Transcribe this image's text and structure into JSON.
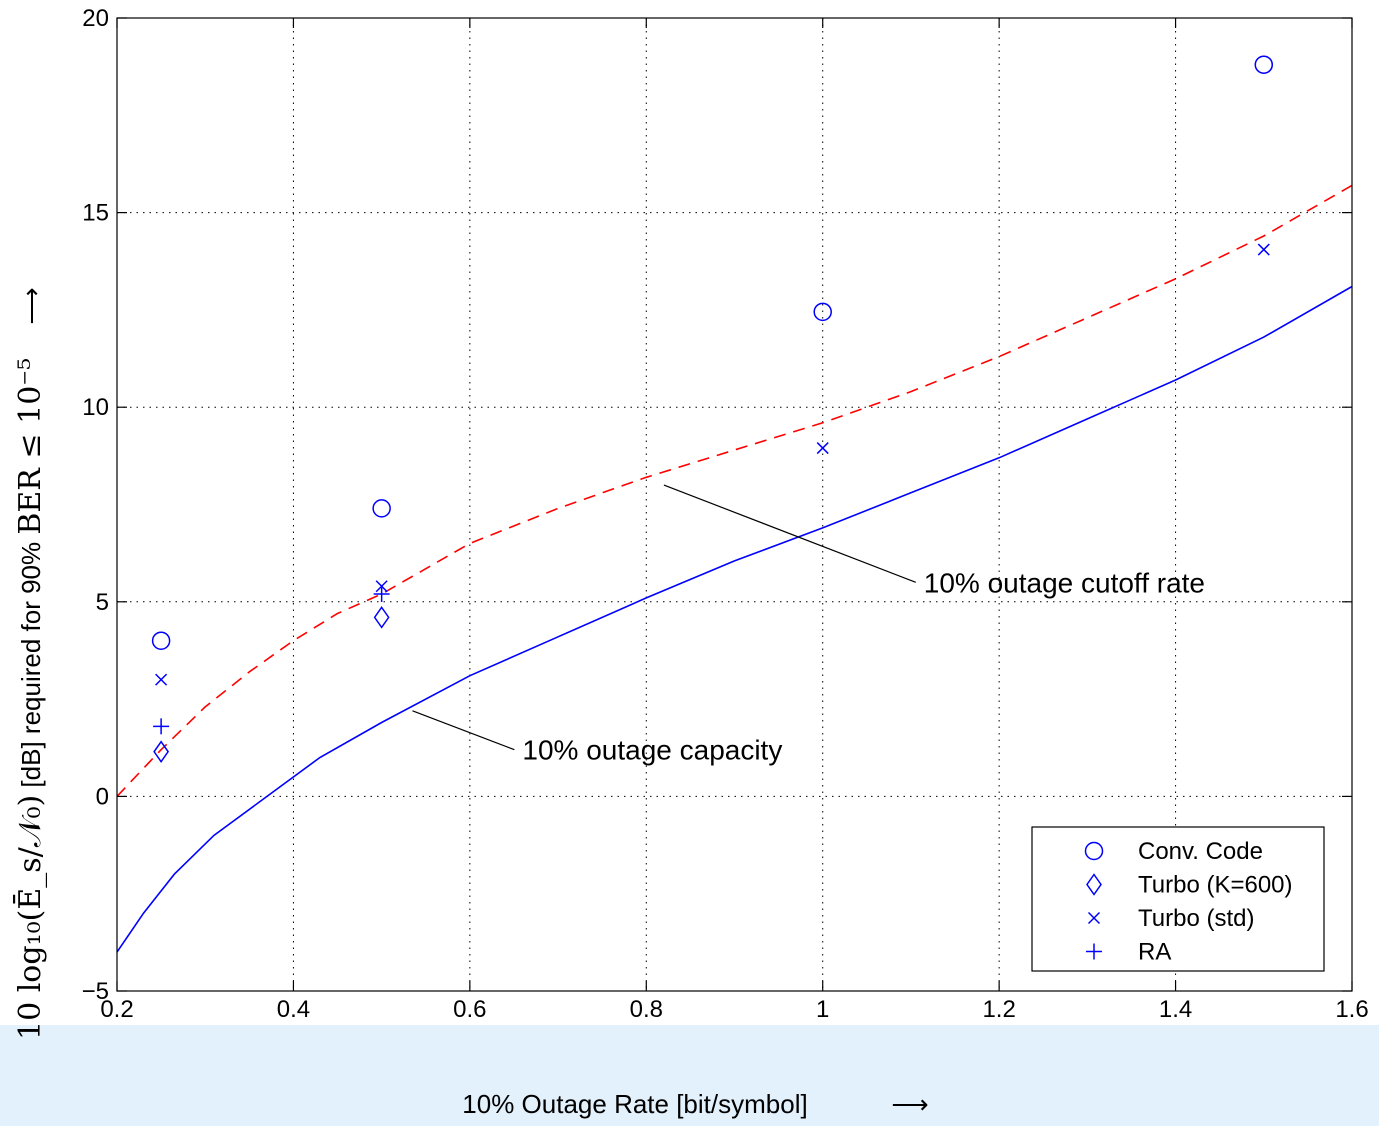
{
  "chart_data": {
    "type": "scatter",
    "title": "",
    "xlabel": "10% Outage Rate [bit/symbol]",
    "xlabel_arrow": "⟶",
    "ylabel_math": "10 log₁₀(Ē_s/𝒩₀)",
    "ylabel_text": " [dB] required for 90% ",
    "ylabel_math2": "BER ≤ 10⁻⁵",
    "ylabel_arrow": "⟶",
    "xlim": [
      0.2,
      1.6
    ],
    "ylim": [
      -5,
      20
    ],
    "grid": true,
    "x_ticks": [
      "0.2",
      "0.4",
      "0.6",
      "0.8",
      "1",
      "1.2",
      "1.4",
      "1.6"
    ],
    "y_ticks": [
      "−5",
      "0",
      "5",
      "10",
      "15",
      "20"
    ],
    "x_tick_values": [
      0.2,
      0.4,
      0.6,
      0.8,
      1.0,
      1.2,
      1.4,
      1.6
    ],
    "y_tick_values": [
      -5,
      0,
      5,
      10,
      15,
      20
    ],
    "legend_position": "bottom-right",
    "series": [
      {
        "name": "Conv. Code",
        "marker": "circle",
        "color": "#0000ff",
        "x": [
          0.25,
          0.5,
          1.0,
          1.5
        ],
        "y": [
          4.0,
          7.4,
          12.45,
          18.8
        ]
      },
      {
        "name": "Turbo (K=600)",
        "marker": "diamond",
        "color": "#0000ff",
        "x": [
          0.25,
          0.5
        ],
        "y": [
          1.15,
          4.6
        ]
      },
      {
        "name": "Turbo (std)",
        "marker": "x",
        "color": "#0000ff",
        "x": [
          0.25,
          0.5,
          1.0,
          1.5
        ],
        "y": [
          3.0,
          5.4,
          8.95,
          14.05
        ]
      },
      {
        "name": "RA",
        "marker": "plus",
        "color": "#0000ff",
        "x": [
          0.25,
          0.5
        ],
        "y": [
          1.8,
          5.2
        ]
      }
    ],
    "curves": [
      {
        "label": "10% outage capacity",
        "style": "solid",
        "color": "#0000ff",
        "x": [
          0.2,
          0.23,
          0.265,
          0.31,
          0.37,
          0.43,
          0.5,
          0.6,
          0.7,
          0.8,
          0.9,
          1.0,
          1.1,
          1.2,
          1.3,
          1.4,
          1.5,
          1.6
        ],
        "y": [
          -4.0,
          -3.0,
          -2.0,
          -1.0,
          0.0,
          1.0,
          1.9,
          3.1,
          4.1,
          5.1,
          6.05,
          6.9,
          7.8,
          8.7,
          9.7,
          10.7,
          11.8,
          13.1
        ]
      },
      {
        "label": "10% outage cutoff rate",
        "style": "dashed",
        "color": "#ff0000",
        "x": [
          0.2,
          0.25,
          0.3,
          0.35,
          0.4,
          0.45,
          0.5,
          0.6,
          0.7,
          0.8,
          0.9,
          1.0,
          1.1,
          1.2,
          1.3,
          1.4,
          1.5,
          1.6
        ],
        "y": [
          0.0,
          1.2,
          2.3,
          3.2,
          4.0,
          4.7,
          5.2,
          6.5,
          7.4,
          8.2,
          8.9,
          9.6,
          10.4,
          11.3,
          12.3,
          13.3,
          14.4,
          15.7
        ]
      }
    ],
    "annotations": [
      {
        "text": "10% outage cutoff rate",
        "point": [
          0.82,
          8.0
        ],
        "text_at": [
          1.11,
          5.5
        ]
      },
      {
        "text": "10% outage capacity",
        "point": [
          0.535,
          2.2
        ],
        "text_at": [
          0.655,
          1.2
        ]
      }
    ]
  }
}
